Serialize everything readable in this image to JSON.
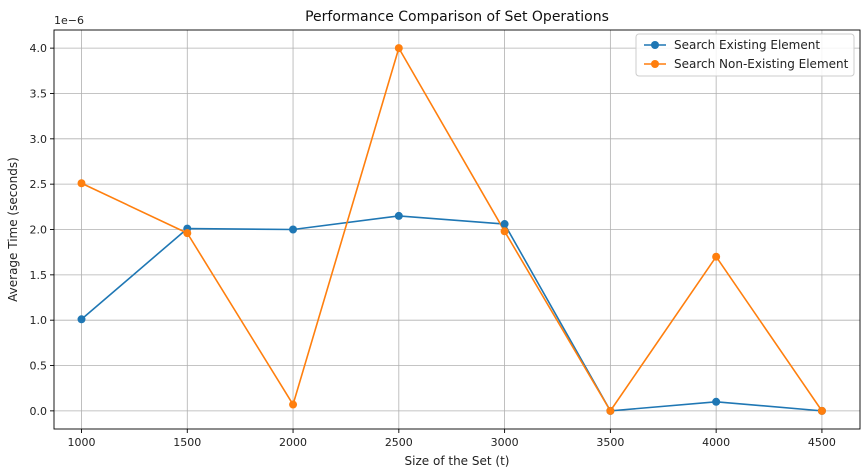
{
  "chart_data": {
    "type": "line",
    "title": "Performance Comparison of Set Operations",
    "xlabel": "Size of the Set (t)",
    "ylabel": "Average Time (seconds)",
    "y_offset_label": "1e−6",
    "x": [
      1000,
      1500,
      2000,
      2500,
      3000,
      3500,
      4000,
      4500
    ],
    "x_ticks": [
      1000,
      1500,
      2000,
      2500,
      3000,
      3500,
      4000,
      4500
    ],
    "x_tick_labels": [
      "1000",
      "1500",
      "2000",
      "2500",
      "3000",
      "3500",
      "4000",
      "4500"
    ],
    "y_ticks": [
      0.0,
      0.5,
      1.0,
      1.5,
      2.0,
      2.5,
      3.0,
      3.5,
      4.0
    ],
    "y_tick_labels": [
      "0.0",
      "0.5",
      "1.0",
      "1.5",
      "2.0",
      "2.5",
      "3.0",
      "3.5",
      "4.0"
    ],
    "xlim": [
      870,
      4680
    ],
    "ylim": [
      -0.2,
      4.2
    ],
    "grid": true,
    "legend_position": "top-right",
    "series": [
      {
        "name": "Search Existing Element",
        "color": "#1f77b4",
        "values": [
          1.01,
          2.01,
          2.0,
          2.15,
          2.06,
          0.0,
          0.1,
          0.0
        ]
      },
      {
        "name": "Search Non-Existing Element",
        "color": "#ff7f0e",
        "values": [
          2.51,
          1.96,
          0.07,
          4.0,
          1.98,
          0.0,
          1.7,
          0.0
        ]
      }
    ]
  }
}
